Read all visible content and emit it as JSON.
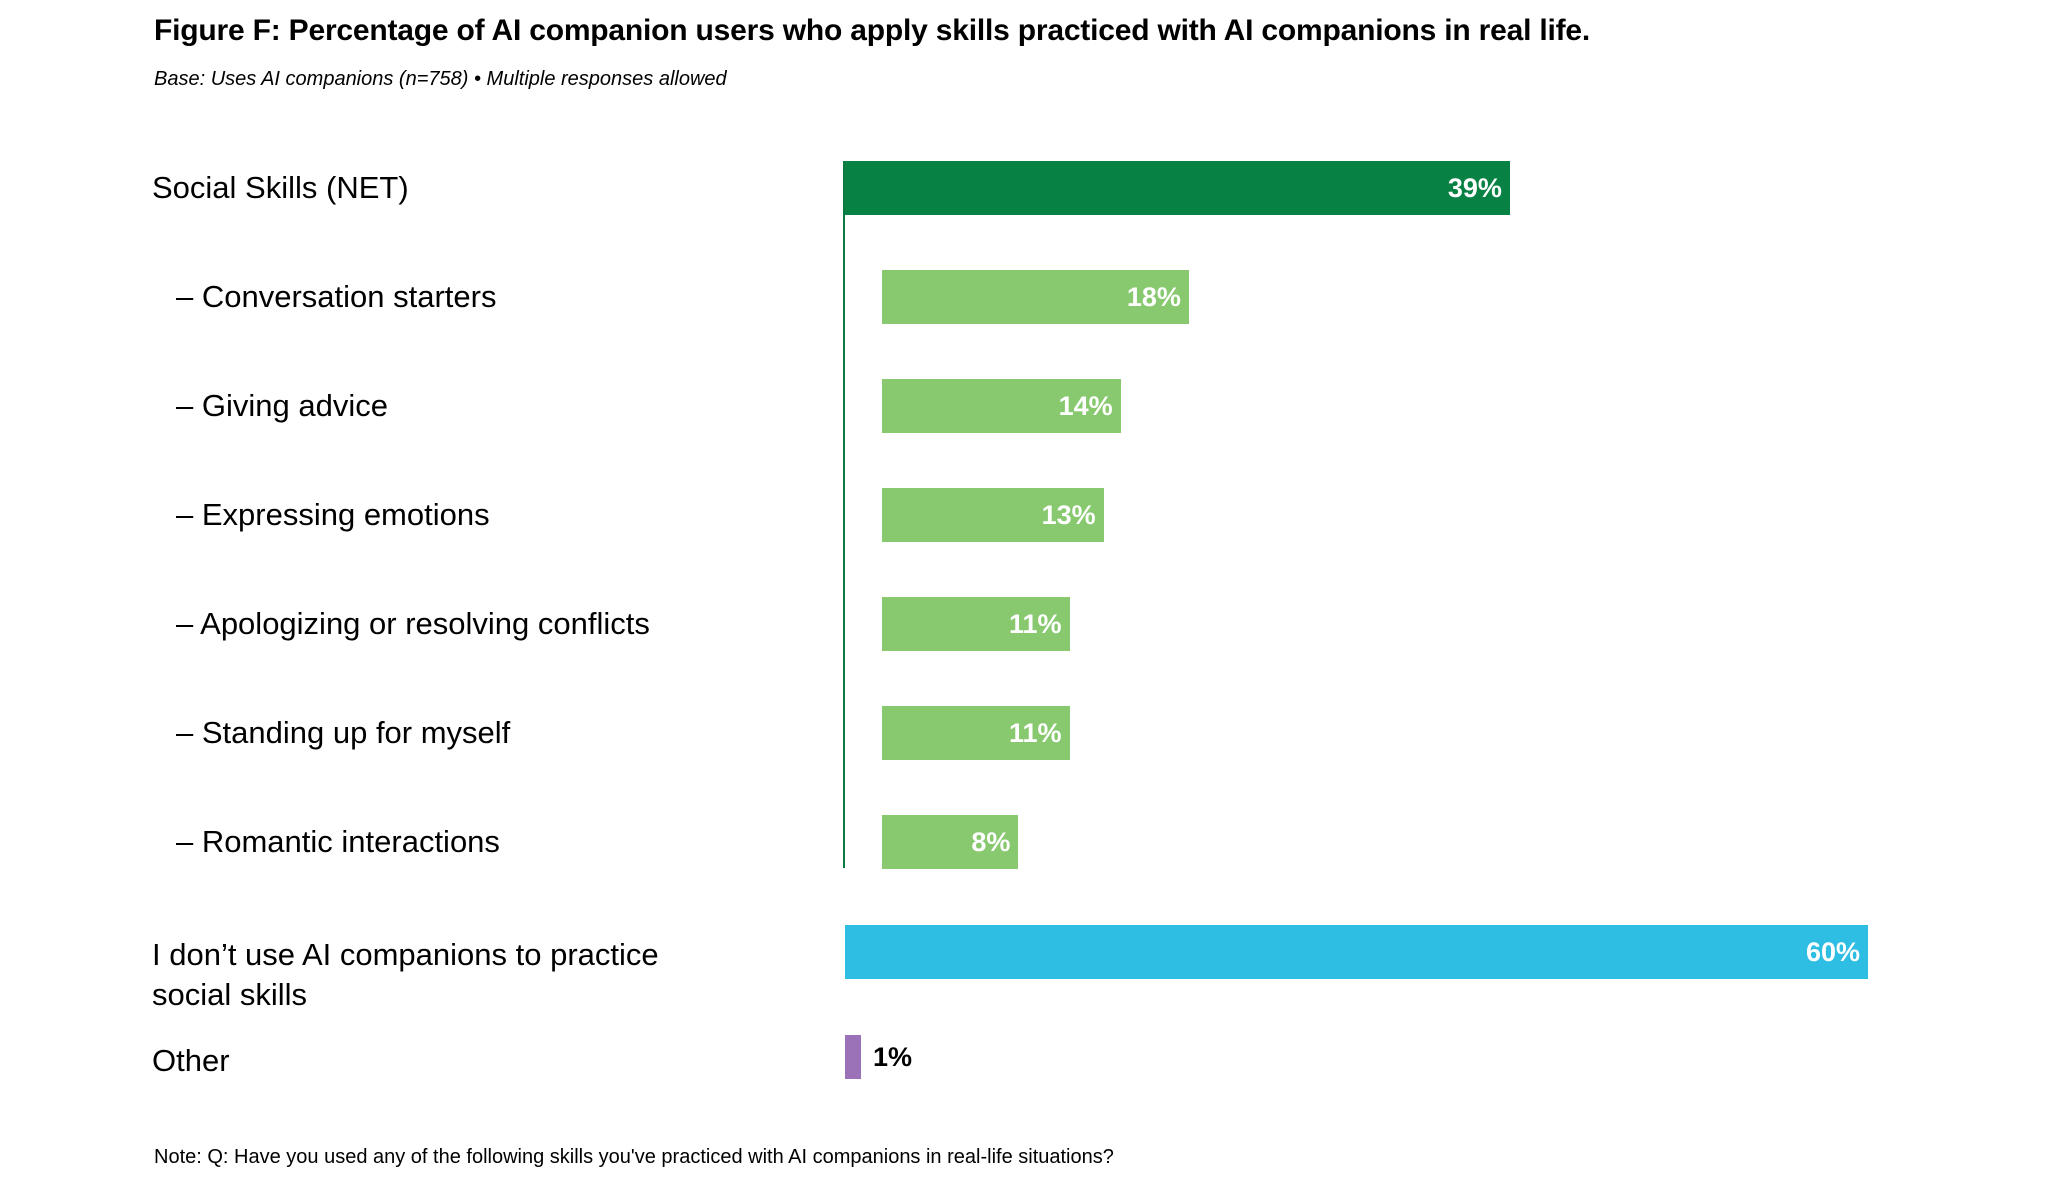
{
  "chart_data": {
    "type": "bar",
    "orientation": "horizontal",
    "title": "Figure F: Percentage of AI companion users who apply skills practiced with AI companions in real life.",
    "subtitle": "Base: Uses AI companions (n=758) • Multiple responses allowed",
    "note": "Note: Q: Have you used any of the following skills you've practiced with AI companions in real-life situations?",
    "xlim": [
      0,
      100
    ],
    "grid": false,
    "legend": "none",
    "categories": [
      {
        "label": "Social Skills (NET)",
        "value": 39,
        "value_label": "39%",
        "level": "net",
        "color": "#078144"
      },
      {
        "label": "– Conversation starters",
        "value": 18,
        "value_label": "18%",
        "level": "sub",
        "color": "#88c970"
      },
      {
        "label": "– Giving advice",
        "value": 14,
        "value_label": "14%",
        "level": "sub",
        "color": "#88c970"
      },
      {
        "label": "– Expressing emotions",
        "value": 13,
        "value_label": "13%",
        "level": "sub",
        "color": "#88c970"
      },
      {
        "label": "– Apologizing or resolving conflicts",
        "value": 11,
        "value_label": "11%",
        "level": "sub",
        "color": "#88c970"
      },
      {
        "label": "– Standing up for myself",
        "value": 11,
        "value_label": "11%",
        "level": "sub",
        "color": "#88c970"
      },
      {
        "label": "– Romantic interactions",
        "value": 8,
        "value_label": "8%",
        "level": "sub",
        "color": "#88c970"
      },
      {
        "label": "I don’t use AI companions to practice",
        "label2": "social skills",
        "value": 60,
        "value_label": "60%",
        "level": "top",
        "color": "#2fbee3"
      },
      {
        "label": "Other",
        "value": 1,
        "value_label": "1%",
        "level": "top",
        "color": "#9b72b8"
      }
    ]
  }
}
